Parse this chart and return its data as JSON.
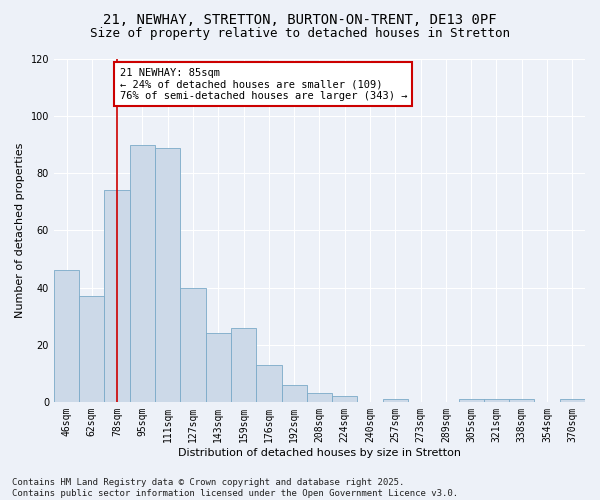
{
  "title_line1": "21, NEWHAY, STRETTON, BURTON-ON-TRENT, DE13 0PF",
  "title_line2": "Size of property relative to detached houses in Stretton",
  "xlabel": "Distribution of detached houses by size in Stretton",
  "ylabel": "Number of detached properties",
  "categories": [
    "46sqm",
    "62sqm",
    "78sqm",
    "95sqm",
    "111sqm",
    "127sqm",
    "143sqm",
    "159sqm",
    "176sqm",
    "192sqm",
    "208sqm",
    "224sqm",
    "240sqm",
    "257sqm",
    "273sqm",
    "289sqm",
    "305sqm",
    "321sqm",
    "338sqm",
    "354sqm",
    "370sqm"
  ],
  "values": [
    46,
    37,
    74,
    90,
    89,
    40,
    24,
    26,
    13,
    6,
    3,
    2,
    0,
    1,
    0,
    0,
    1,
    1,
    1,
    0,
    1
  ],
  "bar_color": "#ccd9e8",
  "bar_edge_color": "#7aaac8",
  "background_color": "#edf1f8",
  "grid_color": "#ffffff",
  "annotation_box_text": "21 NEWHAY: 85sqm\n← 24% of detached houses are smaller (109)\n76% of semi-detached houses are larger (343) →",
  "annotation_box_color": "#ffffff",
  "annotation_box_edge_color": "#cc0000",
  "vline_x": 2.0,
  "vline_color": "#cc0000",
  "ylim": [
    0,
    120
  ],
  "yticks": [
    0,
    20,
    40,
    60,
    80,
    100,
    120
  ],
  "footer_line1": "Contains HM Land Registry data © Crown copyright and database right 2025.",
  "footer_line2": "Contains public sector information licensed under the Open Government Licence v3.0.",
  "footer_fontsize": 6.5,
  "title_fontsize": 10,
  "subtitle_fontsize": 9,
  "axis_label_fontsize": 8,
  "tick_fontsize": 7,
  "annotation_fontsize": 7.5
}
